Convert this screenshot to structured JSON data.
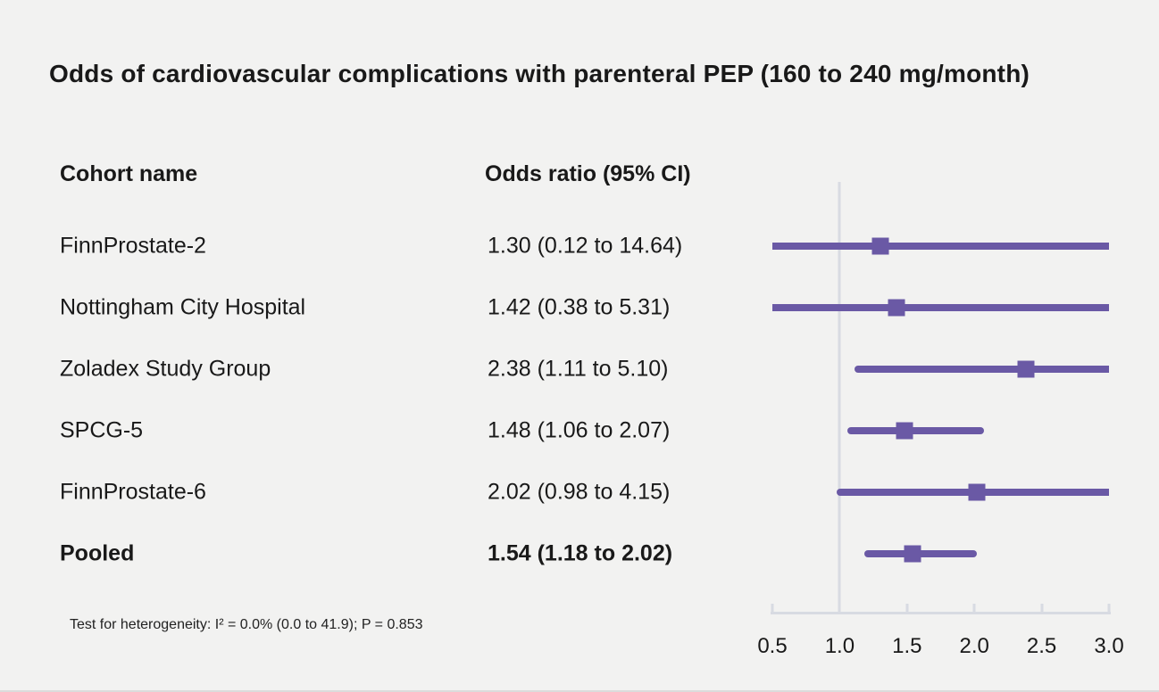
{
  "title": "Odds of cardiovascular complications with parenteral PEP (160 to 240 mg/month)",
  "columns": {
    "cohort": "Cohort name",
    "odds": "Odds ratio (95% CI)"
  },
  "footnote": "Test for heterogeneity: I² = 0.0% (0.0 to 41.9); P = 0.853",
  "colors": {
    "background": "#f2f2f1",
    "text": "#191919",
    "marker": "#6a59a5",
    "axis": "#d8dbe2"
  },
  "chart_data": {
    "type": "forest",
    "title": "Odds of cardiovascular complications with parenteral PEP (160 to 240 mg/month)",
    "xlabel": "Odds ratio",
    "xlim": [
      0.5,
      3.0
    ],
    "reference_line": 1.0,
    "xticks": [
      {
        "value": 0.5,
        "label": "0.5"
      },
      {
        "value": 1.0,
        "label": "1.0"
      },
      {
        "value": 1.5,
        "label": "1.5"
      },
      {
        "value": 2.0,
        "label": "2.0"
      },
      {
        "value": 2.5,
        "label": "2.5"
      },
      {
        "value": 3.0,
        "label": "3.0"
      }
    ],
    "rows": [
      {
        "label": "FinnProstate-2",
        "display": "1.30 (0.12 to 14.64)",
        "or": 1.3,
        "lo": 0.12,
        "hi": 14.64,
        "bold": false
      },
      {
        "label": "Nottingham City Hospital",
        "display": "1.42 (0.38 to 5.31)",
        "or": 1.42,
        "lo": 0.38,
        "hi": 5.31,
        "bold": false
      },
      {
        "label": "Zoladex Study Group",
        "display": "2.38 (1.11 to 5.10)",
        "or": 2.38,
        "lo": 1.11,
        "hi": 5.1,
        "bold": false
      },
      {
        "label": "SPCG-5",
        "display": "1.48 (1.06 to 2.07)",
        "or": 1.48,
        "lo": 1.06,
        "hi": 2.07,
        "bold": false
      },
      {
        "label": "FinnProstate-6",
        "display": "2.02 (0.98 to 4.15)",
        "or": 2.02,
        "lo": 0.98,
        "hi": 4.15,
        "bold": false
      },
      {
        "label": "Pooled",
        "display": "1.54 (1.18 to 2.02)",
        "or": 1.54,
        "lo": 1.18,
        "hi": 2.02,
        "bold": true
      }
    ]
  }
}
